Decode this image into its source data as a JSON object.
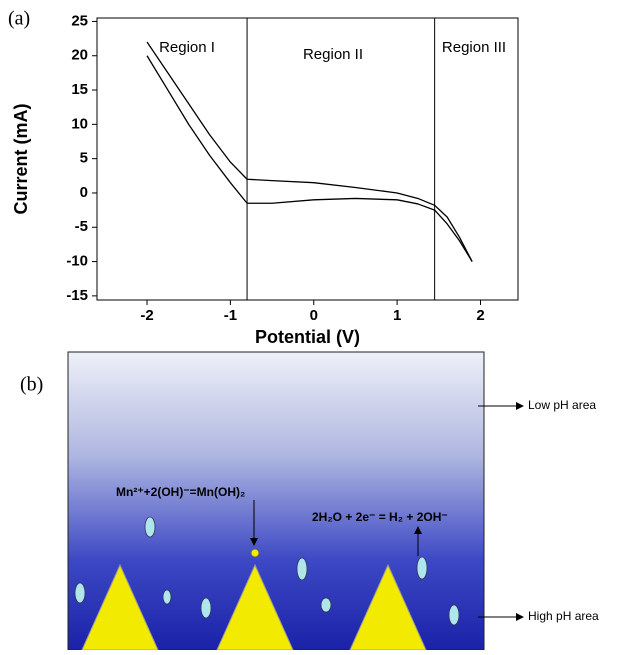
{
  "panel_a_label": "(a)",
  "chart_data": {
    "type": "line",
    "x_label": "Potential (V)",
    "y_label": "Current (mA)",
    "x": [
      -2,
      -1.75,
      -1.5,
      -1.25,
      -1,
      -0.8,
      -0.5,
      0,
      0.5,
      1,
      1.25,
      1.45,
      1.6,
      1.75,
      1.9
    ],
    "series": [
      {
        "color": "#000000",
        "values": [
          22,
          17.5,
          13,
          8.5,
          4.5,
          2,
          1.8,
          1.5,
          0.8,
          0,
          -0.8,
          -1.8,
          -3.5,
          -6.5,
          -10
        ]
      },
      {
        "color": "#000000",
        "values": [
          20,
          15,
          10,
          5.5,
          1.5,
          -1.5,
          -1.5,
          -1,
          -0.8,
          -1,
          -1.6,
          -2.5,
          -4.5,
          -7,
          -10
        ]
      }
    ],
    "xlim": [
      -2.6,
      2.45
    ],
    "ylim": [
      -15.6,
      25.5
    ],
    "xticks": [
      -2,
      -1,
      0,
      1,
      2
    ],
    "yticks": [
      -15,
      -10,
      -5,
      0,
      5,
      10,
      15,
      20,
      25
    ],
    "grid": false,
    "vlines": [
      -0.8,
      1.45
    ],
    "annotations": [
      "Region I",
      "Region II",
      "Region III"
    ]
  },
  "panel_b": {
    "label": "(b)",
    "equation_left": "Mn²⁺+2(OH)⁻=Mn(OH)₂",
    "equation_right": "2H₂O + 2e⁻ = H₂ + 2OH⁻",
    "low_ph": "Low pH area",
    "high_ph": "High pH area"
  }
}
